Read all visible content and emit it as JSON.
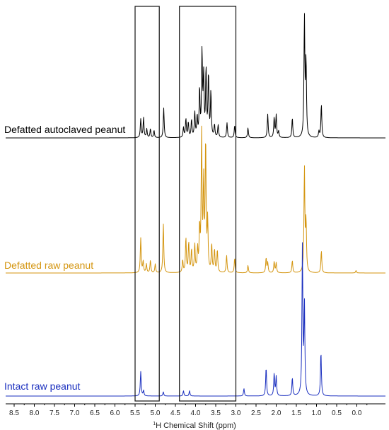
{
  "chart_data": {
    "type": "line",
    "title": "",
    "xlabel": "H Chemical Shift (ppm)",
    "xlabel_superscript": "1",
    "ylabel": "",
    "xlim": [
      8.8,
      -0.4
    ],
    "x_reversed": true,
    "x_ticks": [
      "8.5",
      "8.0",
      "7.5",
      "7.0",
      "6.5",
      "6.0",
      "5.5",
      "5.0",
      "4.5",
      "4.0",
      "3.5",
      "3.0",
      "2.5",
      "2.0",
      "1.5",
      "1.0",
      "0.5",
      "0.0"
    ],
    "grid": false,
    "boxes": [
      {
        "x_from": 5.5,
        "x_to": 4.9
      },
      {
        "x_from": 4.4,
        "x_to": 3.0
      }
    ],
    "series": [
      {
        "name": "Defatted autoclaved peanut",
        "color": "#000000",
        "peaks": [
          {
            "x": 5.36,
            "h": 0.15
          },
          {
            "x": 5.29,
            "h": 0.16
          },
          {
            "x": 5.21,
            "h": 0.07
          },
          {
            "x": 5.12,
            "h": 0.07
          },
          {
            "x": 5.03,
            "h": 0.06
          },
          {
            "x": 4.79,
            "h": 0.24
          },
          {
            "x": 4.3,
            "h": 0.08
          },
          {
            "x": 4.24,
            "h": 0.15
          },
          {
            "x": 4.18,
            "h": 0.12
          },
          {
            "x": 4.1,
            "h": 0.14
          },
          {
            "x": 4.02,
            "h": 0.2
          },
          {
            "x": 3.96,
            "h": 0.16
          },
          {
            "x": 3.9,
            "h": 0.38
          },
          {
            "x": 3.84,
            "h": 0.68
          },
          {
            "x": 3.8,
            "h": 0.48
          },
          {
            "x": 3.74,
            "h": 0.54
          },
          {
            "x": 3.68,
            "h": 0.5
          },
          {
            "x": 3.62,
            "h": 0.36
          },
          {
            "x": 3.53,
            "h": 0.1
          },
          {
            "x": 3.44,
            "h": 0.1
          },
          {
            "x": 3.22,
            "h": 0.12
          },
          {
            "x": 3.03,
            "h": 0.1
          },
          {
            "x": 2.7,
            "h": 0.08
          },
          {
            "x": 2.21,
            "h": 0.19
          },
          {
            "x": 2.05,
            "h": 0.16
          },
          {
            "x": 2.0,
            "h": 0.18
          },
          {
            "x": 1.94,
            "h": 0.05
          },
          {
            "x": 1.6,
            "h": 0.16
          },
          {
            "x": 1.3,
            "h": 0.96
          },
          {
            "x": 1.26,
            "h": 0.6
          },
          {
            "x": 0.94,
            "h": 0.05
          },
          {
            "x": 0.88,
            "h": 0.27
          }
        ]
      },
      {
        "name": "Defatted raw peanut",
        "color": "#d4950f",
        "peaks": [
          {
            "x": 5.36,
            "h": 0.28
          },
          {
            "x": 5.3,
            "h": 0.09
          },
          {
            "x": 5.22,
            "h": 0.07
          },
          {
            "x": 5.12,
            "h": 0.1
          },
          {
            "x": 5.0,
            "h": 0.07
          },
          {
            "x": 4.8,
            "h": 0.4
          },
          {
            "x": 4.32,
            "h": 0.1
          },
          {
            "x": 4.24,
            "h": 0.28
          },
          {
            "x": 4.17,
            "h": 0.24
          },
          {
            "x": 4.1,
            "h": 0.18
          },
          {
            "x": 4.02,
            "h": 0.22
          },
          {
            "x": 3.95,
            "h": 0.18
          },
          {
            "x": 3.9,
            "h": 0.34
          },
          {
            "x": 3.85,
            "h": 1.1
          },
          {
            "x": 3.8,
            "h": 0.7
          },
          {
            "x": 3.75,
            "h": 1.05
          },
          {
            "x": 3.7,
            "h": 0.4
          },
          {
            "x": 3.6,
            "h": 0.22
          },
          {
            "x": 3.53,
            "h": 0.18
          },
          {
            "x": 3.46,
            "h": 0.18
          },
          {
            "x": 3.23,
            "h": 0.14
          },
          {
            "x": 3.03,
            "h": 0.12
          },
          {
            "x": 2.7,
            "h": 0.06
          },
          {
            "x": 2.25,
            "h": 0.12
          },
          {
            "x": 2.21,
            "h": 0.08
          },
          {
            "x": 2.05,
            "h": 0.09
          },
          {
            "x": 2.0,
            "h": 0.08
          },
          {
            "x": 1.6,
            "h": 0.1
          },
          {
            "x": 1.3,
            "h": 0.84
          },
          {
            "x": 1.26,
            "h": 0.4
          },
          {
            "x": 0.88,
            "h": 0.18
          },
          {
            "x": 0.02,
            "h": 0.02
          }
        ]
      },
      {
        "name": "Intact raw peanut",
        "color": "#1a2fbf",
        "peaks": [
          {
            "x": 5.36,
            "h": 0.23
          },
          {
            "x": 5.29,
            "h": 0.05
          },
          {
            "x": 4.8,
            "h": 0.04
          },
          {
            "x": 4.3,
            "h": 0.05
          },
          {
            "x": 4.15,
            "h": 0.05
          },
          {
            "x": 2.8,
            "h": 0.07
          },
          {
            "x": 2.25,
            "h": 0.27
          },
          {
            "x": 2.05,
            "h": 0.21
          },
          {
            "x": 2.0,
            "h": 0.18
          },
          {
            "x": 1.6,
            "h": 0.17
          },
          {
            "x": 1.35,
            "h": 1.4
          },
          {
            "x": 1.3,
            "h": 0.85
          },
          {
            "x": 0.89,
            "h": 0.42
          }
        ]
      }
    ]
  }
}
